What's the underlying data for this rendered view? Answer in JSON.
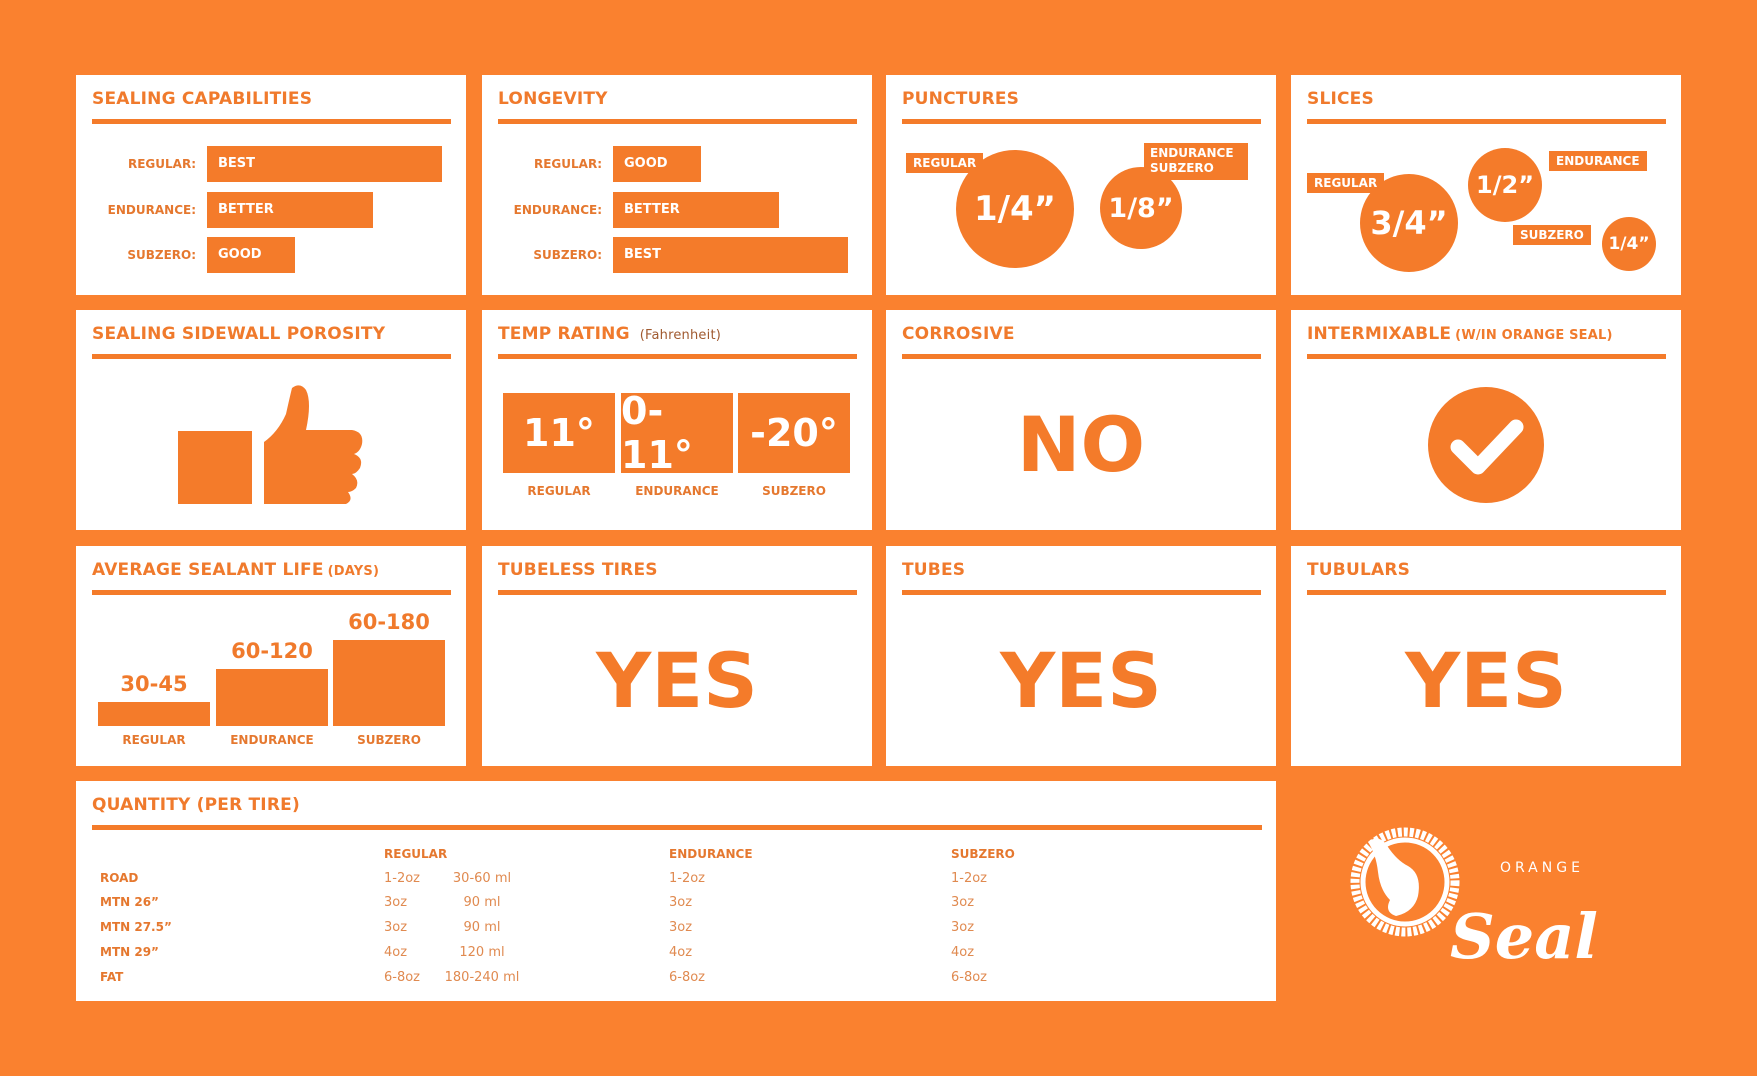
{
  "colors": {
    "background": "#FA812F",
    "accent": "#F47B2A",
    "card": "#FFFFFF"
  },
  "sealing": {
    "title": "SEALING CAPABILITIES",
    "rows": [
      {
        "label": "REGULAR:",
        "value": "BEST",
        "level": 3
      },
      {
        "label": "ENDURANCE:",
        "value": "BETTER",
        "level": 2
      },
      {
        "label": "SUBZERO:",
        "value": "GOOD",
        "level": 1
      }
    ]
  },
  "longevity": {
    "title": "LONGEVITY",
    "rows": [
      {
        "label": "REGULAR:",
        "value": "GOOD",
        "level": 1
      },
      {
        "label": "ENDURANCE:",
        "value": "BETTER",
        "level": 2
      },
      {
        "label": "SUBZERO:",
        "value": "BEST",
        "level": 3
      }
    ]
  },
  "punctures": {
    "title": "PUNCTURES",
    "regular_label": "REGULAR",
    "regular_value": "1/4”",
    "other_label_1": "ENDURANCE",
    "other_label_2": "SUBZERO",
    "other_value": "1/8”"
  },
  "slices": {
    "title": "SLICES",
    "regular_label": "REGULAR",
    "regular_value": "3/4”",
    "endurance_label": "ENDURANCE",
    "endurance_value": "1/2”",
    "subzero_label": "SUBZERO",
    "subzero_value": "1/4”"
  },
  "porosity": {
    "title": "SEALING SIDEWALL POROSITY",
    "icon": "thumbs-up-icon"
  },
  "temp": {
    "title": "TEMP RATING",
    "unit": "(Fahrenheit)",
    "items": [
      {
        "value": "11°",
        "label": "REGULAR"
      },
      {
        "value": "0-11°",
        "label": "ENDURANCE"
      },
      {
        "value": "-20°",
        "label": "SUBZERO"
      }
    ]
  },
  "corrosive": {
    "title": "CORROSIVE",
    "value": "NO"
  },
  "intermixable": {
    "title": "INTERMIXABLE",
    "note": "(W/IN ORANGE SEAL)",
    "icon": "check-circle-icon"
  },
  "life": {
    "title": "AVERAGE SEALANT LIFE",
    "unit": "(DAYS)",
    "items": [
      {
        "value": "30-45",
        "label": "REGULAR",
        "max_days": 45
      },
      {
        "value": "60-120",
        "label": "ENDURANCE",
        "max_days": 120
      },
      {
        "value": "60-180",
        "label": "SUBZERO",
        "max_days": 180
      }
    ]
  },
  "tubeless": {
    "title": "TUBELESS TIRES",
    "value": "YES"
  },
  "tubes": {
    "title": "TUBES",
    "value": "YES"
  },
  "tubulars": {
    "title": "TUBULARS",
    "value": "YES"
  },
  "quantity": {
    "title": "QUANTITY (PER TIRE)",
    "headers": [
      "REGULAR",
      "ENDURANCE",
      "SUBZERO"
    ],
    "rows": [
      {
        "size": "ROAD",
        "regular": "1-2oz",
        "ml": "30-60 ml",
        "endurance": "1-2oz",
        "subzero": "1-2oz"
      },
      {
        "size": "MTN 26”",
        "regular": "3oz",
        "ml": "90 ml",
        "endurance": "3oz",
        "subzero": "3oz"
      },
      {
        "size": "MTN 27.5”",
        "regular": "3oz",
        "ml": "90 ml",
        "endurance": "3oz",
        "subzero": "3oz"
      },
      {
        "size": "MTN 29”",
        "regular": "4oz",
        "ml": "120 ml",
        "endurance": "4oz",
        "subzero": "4oz"
      },
      {
        "size": "FAT",
        "regular": "6-8oz",
        "ml": "180-240 ml",
        "endurance": "6-8oz",
        "subzero": "6-8oz"
      }
    ]
  },
  "logo": {
    "small": "ORANGE",
    "large": "Seal"
  }
}
